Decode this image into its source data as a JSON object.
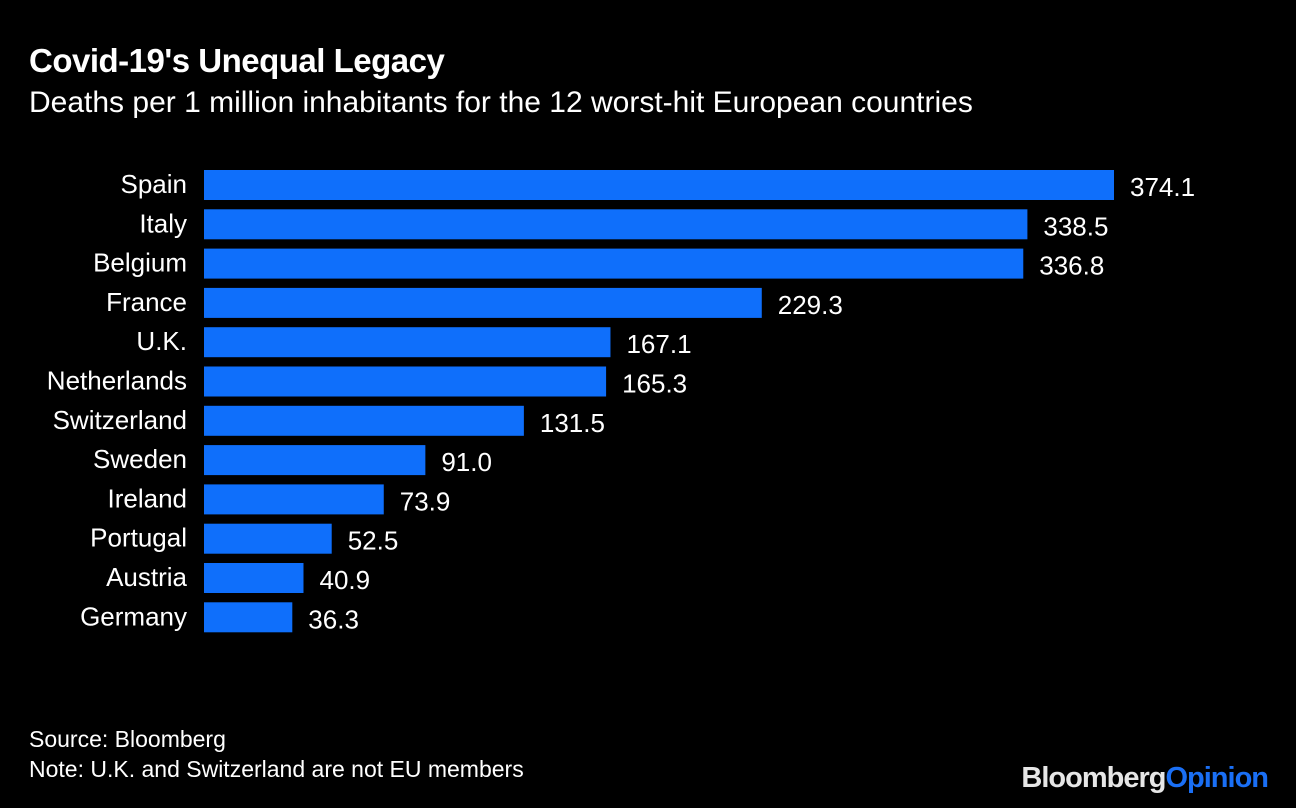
{
  "chart_data": {
    "type": "bar",
    "orientation": "horizontal",
    "title": "Covid-19's Unequal Legacy",
    "subtitle": "Deaths per 1 million inhabitants for the 12 worst-hit European countries",
    "categories": [
      "Spain",
      "Italy",
      "Belgium",
      "France",
      "U.K.",
      "Netherlands",
      "Switzerland",
      "Sweden",
      "Ireland",
      "Portugal",
      "Austria",
      "Germany"
    ],
    "values": [
      374.1,
      338.5,
      336.8,
      229.3,
      167.1,
      165.3,
      131.5,
      91.0,
      73.9,
      52.5,
      40.9,
      36.3
    ],
    "value_labels": [
      "374.1",
      "338.5",
      "336.8",
      "229.3",
      "167.1",
      "165.3",
      "131.5",
      "91.0",
      "73.9",
      "52.5",
      "40.9",
      "36.3"
    ],
    "xlabel": "",
    "ylabel": "",
    "xlim": [
      0,
      374.1
    ],
    "grid": false,
    "bar_color": "#0f6ffb"
  },
  "footer": {
    "source": "Source: Bloomberg",
    "note": "Note: U.K. and Switzerland are not EU members"
  },
  "logo": {
    "part1": "Bloomberg",
    "part2": "Opinion"
  }
}
